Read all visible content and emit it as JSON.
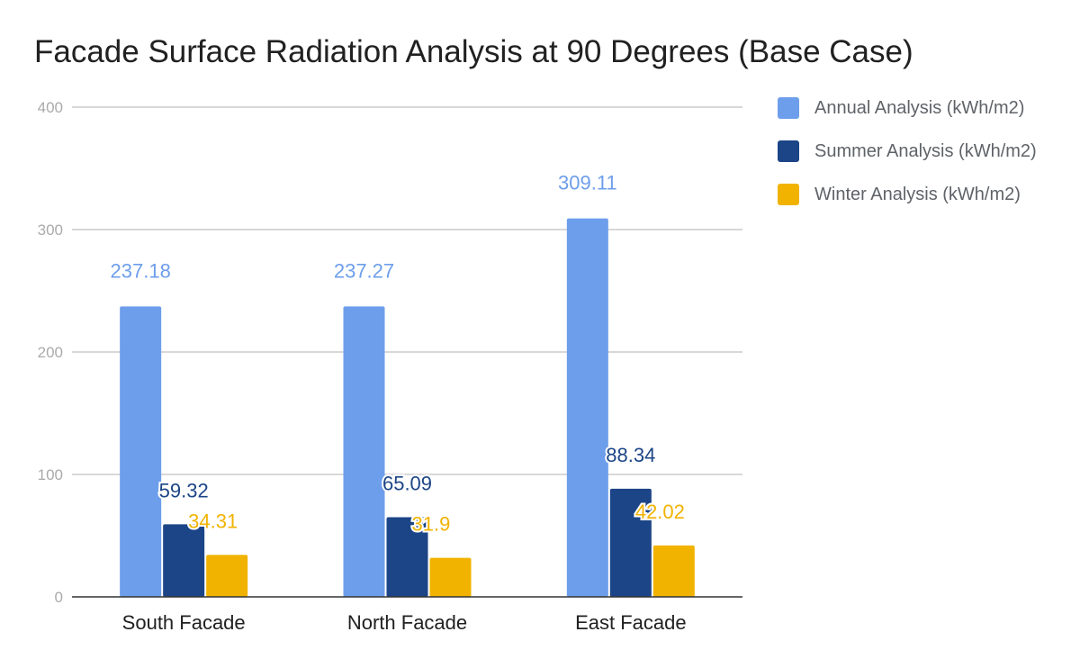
{
  "chart_data": {
    "type": "bar",
    "title": "Facade Surface Radiation Analysis at 90 Degrees (Base Case)",
    "categories": [
      "South Facade",
      "North Facade",
      "East Facade"
    ],
    "series": [
      {
        "name": "Annual Analysis (kWh/m2)",
        "color": "#6d9eeb",
        "values": [
          237.18,
          237.27,
          309.11
        ],
        "labels": [
          "237.18",
          "237.27",
          "309.11"
        ]
      },
      {
        "name": "Summer Analysis (kWh/m2)",
        "color": "#1c4587",
        "values": [
          59.32,
          65.09,
          88.34
        ],
        "labels": [
          "59.32",
          "65.09",
          "88.34"
        ]
      },
      {
        "name": "Winter Analysis (kWh/m2)",
        "color": "#f1b300",
        "values": [
          34.31,
          31.9,
          42.02
        ],
        "labels": [
          "34.31",
          "31.9",
          "42.02"
        ]
      }
    ],
    "ylim": [
      0,
      400
    ],
    "yticks": [
      "0",
      "100",
      "200",
      "300",
      "400"
    ],
    "xlabel": "",
    "ylabel": "",
    "grid": true,
    "legend_position": "right"
  }
}
